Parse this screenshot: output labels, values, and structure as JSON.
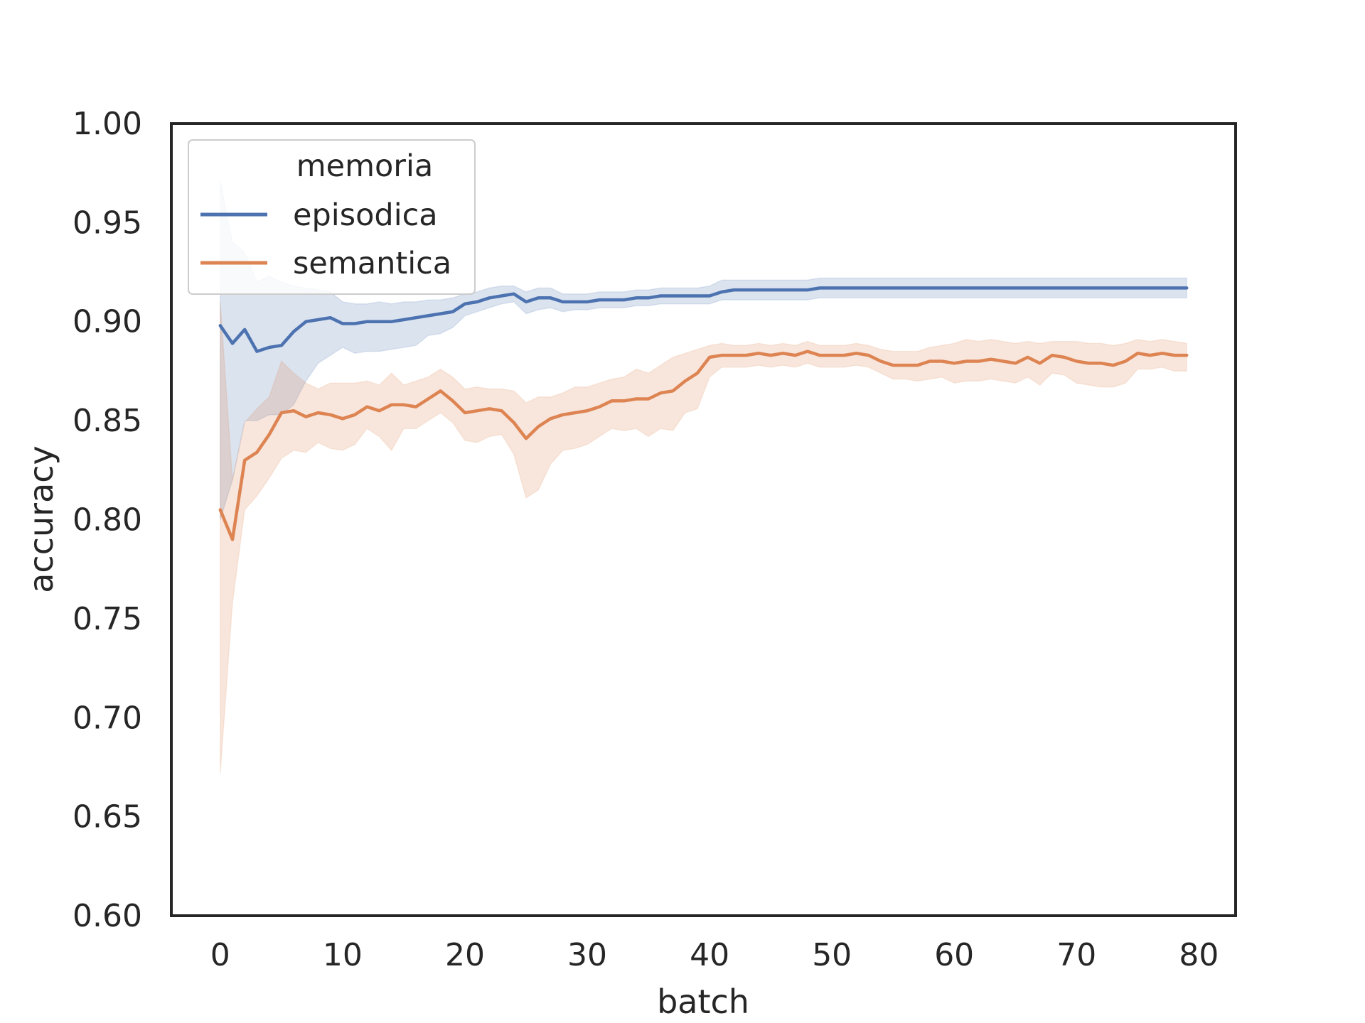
{
  "chart_data": {
    "type": "line",
    "xlabel": "batch",
    "ylabel": "accuracy",
    "xlim": [
      -4,
      83
    ],
    "ylim": [
      0.6,
      1.0
    ],
    "xticks": [
      0,
      10,
      20,
      30,
      40,
      50,
      60,
      70,
      80
    ],
    "xtick_labels": [
      "0",
      "10",
      "20",
      "30",
      "40",
      "50",
      "60",
      "70",
      "80"
    ],
    "yticks": [
      0.6,
      0.65,
      0.7,
      0.75,
      0.8,
      0.85,
      0.9,
      0.95,
      1.0
    ],
    "ytick_labels": [
      "0.60",
      "0.65",
      "0.70",
      "0.75",
      "0.80",
      "0.85",
      "0.90",
      "0.95",
      "1.00"
    ],
    "grid": false,
    "legend": {
      "title": "memoria",
      "position": "top-left"
    },
    "series": [
      {
        "name": "episodica",
        "color": "#4c72b0",
        "x": [
          0,
          1,
          2,
          3,
          4,
          5,
          6,
          7,
          8,
          9,
          10,
          11,
          12,
          13,
          14,
          15,
          16,
          17,
          18,
          19,
          20,
          21,
          22,
          23,
          24,
          25,
          26,
          27,
          28,
          29,
          30,
          31,
          32,
          33,
          34,
          35,
          36,
          37,
          38,
          39,
          40,
          41,
          42,
          43,
          44,
          45,
          46,
          47,
          48,
          49,
          50,
          51,
          52,
          53,
          54,
          55,
          56,
          57,
          58,
          59,
          60,
          61,
          62,
          63,
          64,
          65,
          66,
          67,
          68,
          69,
          70,
          71,
          72,
          73,
          74,
          75,
          76,
          77,
          78,
          79
        ],
        "y": [
          0.898,
          0.889,
          0.896,
          0.885,
          0.887,
          0.888,
          0.895,
          0.9,
          0.901,
          0.902,
          0.899,
          0.899,
          0.9,
          0.9,
          0.9,
          0.901,
          0.902,
          0.903,
          0.904,
          0.905,
          0.909,
          0.91,
          0.912,
          0.913,
          0.914,
          0.91,
          0.912,
          0.912,
          0.91,
          0.91,
          0.91,
          0.911,
          0.911,
          0.911,
          0.912,
          0.912,
          0.913,
          0.913,
          0.913,
          0.913,
          0.913,
          0.915,
          0.916,
          0.916,
          0.916,
          0.916,
          0.916,
          0.916,
          0.916,
          0.917,
          0.917,
          0.917,
          0.917,
          0.917,
          0.917,
          0.917,
          0.917,
          0.917,
          0.917,
          0.917,
          0.917,
          0.917,
          0.917,
          0.917,
          0.917,
          0.917,
          0.917,
          0.917,
          0.917,
          0.917,
          0.917,
          0.917,
          0.917,
          0.917,
          0.917,
          0.917,
          0.917,
          0.917,
          0.917,
          0.917
        ],
        "ci_upper": [
          0.971,
          0.94,
          0.935,
          0.92,
          0.923,
          0.92,
          0.918,
          0.917,
          0.916,
          0.915,
          0.91,
          0.909,
          0.909,
          0.91,
          0.909,
          0.91,
          0.91,
          0.911,
          0.911,
          0.912,
          0.914,
          0.915,
          0.917,
          0.918,
          0.918,
          0.915,
          0.917,
          0.917,
          0.914,
          0.914,
          0.914,
          0.915,
          0.915,
          0.915,
          0.916,
          0.916,
          0.917,
          0.917,
          0.917,
          0.917,
          0.918,
          0.921,
          0.921,
          0.921,
          0.921,
          0.921,
          0.921,
          0.921,
          0.921,
          0.922,
          0.922,
          0.922,
          0.922,
          0.922,
          0.922,
          0.922,
          0.922,
          0.922,
          0.922,
          0.922,
          0.922,
          0.922,
          0.922,
          0.922,
          0.922,
          0.922,
          0.922,
          0.922,
          0.922,
          0.922,
          0.922,
          0.922,
          0.922,
          0.922,
          0.922,
          0.922,
          0.922,
          0.922,
          0.922,
          0.922
        ],
        "ci_lower": [
          0.8,
          0.82,
          0.85,
          0.85,
          0.853,
          0.853,
          0.858,
          0.87,
          0.879,
          0.883,
          0.887,
          0.884,
          0.885,
          0.885,
          0.886,
          0.887,
          0.888,
          0.893,
          0.894,
          0.897,
          0.903,
          0.905,
          0.907,
          0.909,
          0.91,
          0.904,
          0.906,
          0.907,
          0.905,
          0.906,
          0.906,
          0.907,
          0.907,
          0.907,
          0.908,
          0.908,
          0.909,
          0.909,
          0.909,
          0.909,
          0.909,
          0.911,
          0.911,
          0.911,
          0.911,
          0.911,
          0.911,
          0.911,
          0.911,
          0.912,
          0.912,
          0.912,
          0.912,
          0.912,
          0.912,
          0.912,
          0.912,
          0.912,
          0.912,
          0.912,
          0.912,
          0.912,
          0.912,
          0.912,
          0.912,
          0.912,
          0.912,
          0.912,
          0.912,
          0.912,
          0.912,
          0.912,
          0.912,
          0.912,
          0.912,
          0.912,
          0.912,
          0.912,
          0.912,
          0.912
        ]
      },
      {
        "name": "semantica",
        "color": "#dd8452",
        "x": [
          0,
          1,
          2,
          3,
          4,
          5,
          6,
          7,
          8,
          9,
          10,
          11,
          12,
          13,
          14,
          15,
          16,
          17,
          18,
          19,
          20,
          21,
          22,
          23,
          24,
          25,
          26,
          27,
          28,
          29,
          30,
          31,
          32,
          33,
          34,
          35,
          36,
          37,
          38,
          39,
          40,
          41,
          42,
          43,
          44,
          45,
          46,
          47,
          48,
          49,
          50,
          51,
          52,
          53,
          54,
          55,
          56,
          57,
          58,
          59,
          60,
          61,
          62,
          63,
          64,
          65,
          66,
          67,
          68,
          69,
          70,
          71,
          72,
          73,
          74,
          75,
          76,
          77,
          78,
          79
        ],
        "y": [
          0.805,
          0.79,
          0.83,
          0.834,
          0.843,
          0.854,
          0.855,
          0.852,
          0.854,
          0.853,
          0.851,
          0.853,
          0.857,
          0.855,
          0.858,
          0.858,
          0.857,
          0.861,
          0.865,
          0.86,
          0.854,
          0.855,
          0.856,
          0.855,
          0.849,
          0.841,
          0.847,
          0.851,
          0.853,
          0.854,
          0.855,
          0.857,
          0.86,
          0.86,
          0.861,
          0.861,
          0.864,
          0.865,
          0.87,
          0.874,
          0.882,
          0.883,
          0.883,
          0.883,
          0.884,
          0.883,
          0.884,
          0.883,
          0.885,
          0.883,
          0.883,
          0.883,
          0.884,
          0.883,
          0.88,
          0.878,
          0.878,
          0.878,
          0.88,
          0.88,
          0.879,
          0.88,
          0.88,
          0.881,
          0.88,
          0.879,
          0.882,
          0.879,
          0.883,
          0.882,
          0.88,
          0.879,
          0.879,
          0.878,
          0.88,
          0.884,
          0.883,
          0.884,
          0.883,
          0.883
        ],
        "ci_upper": [
          0.91,
          0.82,
          0.849,
          0.856,
          0.862,
          0.88,
          0.874,
          0.869,
          0.866,
          0.869,
          0.869,
          0.869,
          0.87,
          0.868,
          0.874,
          0.868,
          0.87,
          0.872,
          0.876,
          0.872,
          0.866,
          0.867,
          0.866,
          0.866,
          0.865,
          0.859,
          0.862,
          0.862,
          0.864,
          0.867,
          0.867,
          0.869,
          0.871,
          0.872,
          0.876,
          0.874,
          0.878,
          0.882,
          0.884,
          0.886,
          0.888,
          0.889,
          0.888,
          0.888,
          0.889,
          0.888,
          0.889,
          0.888,
          0.89,
          0.888,
          0.888,
          0.888,
          0.889,
          0.888,
          0.886,
          0.885,
          0.885,
          0.885,
          0.887,
          0.888,
          0.889,
          0.891,
          0.89,
          0.891,
          0.89,
          0.889,
          0.89,
          0.889,
          0.89,
          0.89,
          0.89,
          0.889,
          0.889,
          0.888,
          0.889,
          0.891,
          0.89,
          0.891,
          0.89,
          0.889
        ],
        "ci_lower": [
          0.672,
          0.758,
          0.805,
          0.812,
          0.821,
          0.831,
          0.835,
          0.834,
          0.839,
          0.836,
          0.835,
          0.838,
          0.846,
          0.842,
          0.835,
          0.846,
          0.846,
          0.85,
          0.854,
          0.849,
          0.84,
          0.839,
          0.842,
          0.843,
          0.833,
          0.811,
          0.815,
          0.828,
          0.835,
          0.836,
          0.838,
          0.842,
          0.846,
          0.845,
          0.846,
          0.842,
          0.846,
          0.845,
          0.854,
          0.856,
          0.872,
          0.877,
          0.877,
          0.877,
          0.878,
          0.877,
          0.878,
          0.877,
          0.879,
          0.877,
          0.877,
          0.877,
          0.878,
          0.877,
          0.874,
          0.871,
          0.871,
          0.87,
          0.871,
          0.872,
          0.869,
          0.87,
          0.87,
          0.871,
          0.87,
          0.869,
          0.872,
          0.868,
          0.874,
          0.873,
          0.869,
          0.868,
          0.867,
          0.867,
          0.869,
          0.876,
          0.876,
          0.877,
          0.875,
          0.875
        ]
      }
    ]
  }
}
